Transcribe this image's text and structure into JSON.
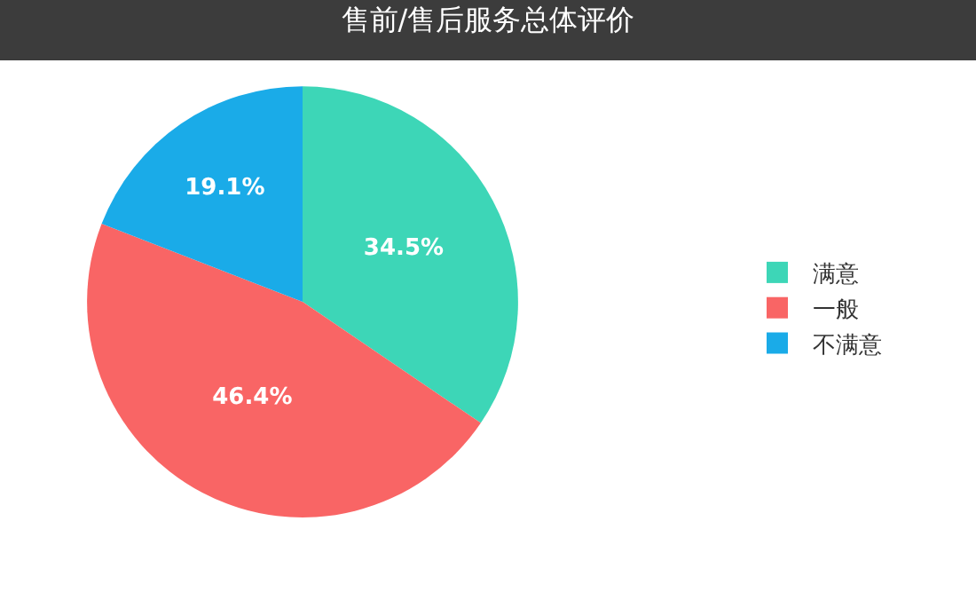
{
  "chart_data": {
    "type": "pie",
    "title": "售前/售后服务总体评价",
    "categories": [
      "满意",
      "一般",
      "不满意"
    ],
    "values": [
      34.5,
      46.4,
      19.1
    ],
    "colors": [
      "#3dd6b7",
      "#f96565",
      "#1aabe8"
    ],
    "value_labels": [
      "34.5%",
      "46.4%",
      "19.1%"
    ],
    "legend": "right"
  }
}
